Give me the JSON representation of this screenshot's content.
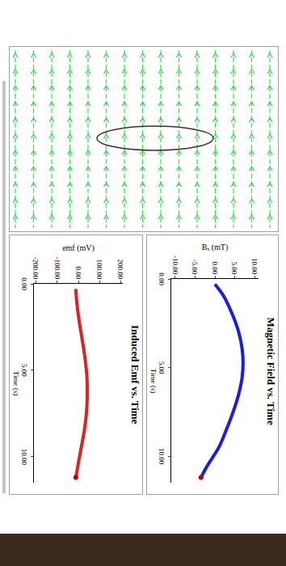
{
  "chart_data": [
    {
      "type": "line",
      "title": "Magnetic Field vs. Time",
      "x_label": "Time (s)",
      "y_label": "Bₓ (mT)",
      "x": [
        0.3,
        1,
        2,
        3,
        4,
        4.7,
        5.5,
        6.5,
        7.5,
        8.5,
        9.5,
        10.5,
        11.2
      ],
      "values": [
        0,
        2.3,
        4.4,
        6,
        6.9,
        7.1,
        6.9,
        6,
        4.6,
        2.9,
        1,
        -1.8,
        -3.5
      ],
      "color": "#1a1aee",
      "marker": "circle",
      "xlim": [
        0,
        11.5
      ],
      "xticks": [
        {
          "value": 0,
          "label": "0.00"
        },
        {
          "value": 5,
          "label": "5.00"
        },
        {
          "value": 10,
          "label": "10.00"
        }
      ],
      "ylim": [
        -11,
        11
      ],
      "yticks": [
        {
          "value": -10,
          "label": "-10.00"
        },
        {
          "value": -5,
          "label": "-5.00"
        },
        {
          "value": 0,
          "label": "0.00"
        },
        {
          "value": 5,
          "label": "5.00"
        },
        {
          "value": 10,
          "label": "10.00"
        }
      ],
      "grid": false
    },
    {
      "type": "line",
      "title": "Induced Emf vs. Time",
      "x_label": "Time (s)",
      "y_label": "emf (mV)",
      "x": [
        0.3,
        1,
        2,
        3,
        4,
        5,
        5.5,
        6.5,
        7.5,
        8.5,
        9.5,
        10.5,
        11.2
      ],
      "values": [
        -12,
        -8,
        2,
        15,
        28,
        38,
        41,
        42,
        38,
        28,
        13,
        -2,
        -12
      ],
      "color": "#dd2222",
      "marker": "circle",
      "xlim": [
        0,
        11.5
      ],
      "xticks": [
        {
          "value": 0,
          "label": "0.00"
        },
        {
          "value": 5,
          "label": "5.00"
        },
        {
          "value": 10,
          "label": "10.00"
        }
      ],
      "ylim": [
        -210,
        210
      ],
      "yticks": [
        {
          "value": -200,
          "label": "-200.00"
        },
        {
          "value": -100,
          "label": "-100.00"
        },
        {
          "value": 0,
          "label": "0.00"
        },
        {
          "value": 100,
          "label": "100.00"
        },
        {
          "value": 200,
          "label": "200.00"
        }
      ],
      "grid": false
    }
  ]
}
